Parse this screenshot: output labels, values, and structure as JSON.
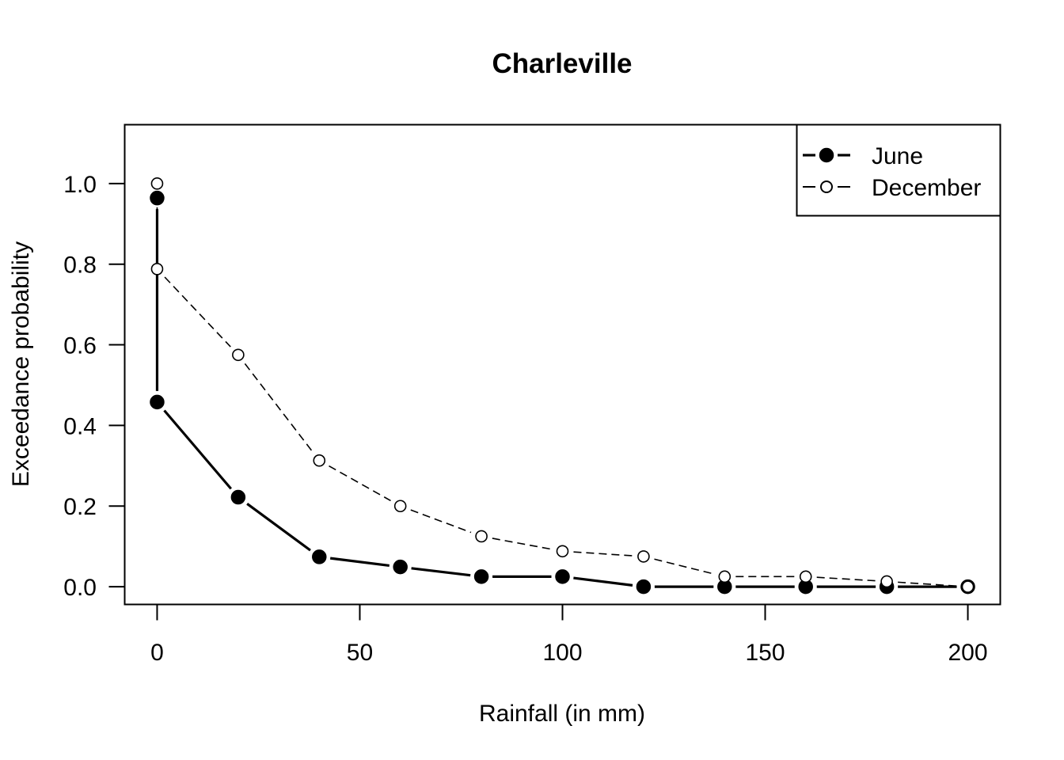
{
  "chart_data": {
    "type": "line",
    "title": "Charleville",
    "xlabel": "Rainfall (in mm)",
    "ylabel": "Exceedance probability",
    "xlim": [
      -8,
      208
    ],
    "ylim": [
      -0.044,
      1.146
    ],
    "xticks": [
      0,
      50,
      100,
      150,
      200
    ],
    "xtick_labels": [
      "0",
      "50",
      "100",
      "150",
      "200"
    ],
    "yticks": [
      0.0,
      0.2,
      0.4,
      0.6,
      0.8,
      1.0
    ],
    "ytick_labels": [
      "0.0",
      "0.2",
      "0.4",
      "0.6",
      "0.8",
      "1.0"
    ],
    "grid": false,
    "legend_position": "top-right",
    "series": [
      {
        "name": "June",
        "style": "solid",
        "marker": "filled-circle",
        "color": "#000000",
        "x": [
          0,
          0,
          20,
          40,
          60,
          80,
          100,
          120,
          140,
          160,
          180,
          200
        ],
        "y": [
          0.964,
          0.458,
          0.222,
          0.074,
          0.049,
          0.025,
          0.025,
          0.0,
          0.0,
          0.0,
          0.0,
          0.0
        ]
      },
      {
        "name": "December",
        "style": "dashed",
        "marker": "open-circle",
        "color": "#000000",
        "x": [
          0,
          0,
          20,
          40,
          60,
          80,
          100,
          120,
          140,
          160,
          180,
          200
        ],
        "y": [
          1.0,
          0.788,
          0.575,
          0.313,
          0.2,
          0.125,
          0.088,
          0.075,
          0.025,
          0.025,
          0.013,
          0.0
        ]
      }
    ]
  }
}
